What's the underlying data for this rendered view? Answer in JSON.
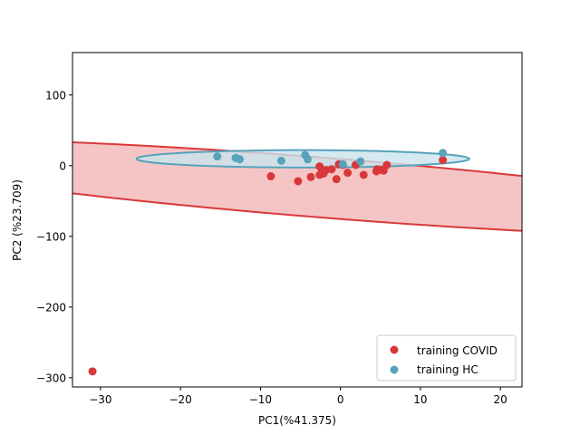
{
  "chart_data": {
    "type": "scatter",
    "xlabel": "PC1(%41.375)",
    "ylabel": "PC2 (%23.709)",
    "xlim": [
      -33.5,
      22.7
    ],
    "ylim": [
      -313,
      160
    ],
    "xticks": [
      -30,
      -20,
      -10,
      0,
      10,
      20
    ],
    "yticks": [
      -300,
      -200,
      -100,
      0,
      100
    ],
    "xtick_labels": [
      "−30",
      "−20",
      "−10",
      "0",
      "10",
      "20"
    ],
    "ytick_labels": [
      "−300",
      "−200",
      "−100",
      "0",
      "100"
    ],
    "legend_position": "lower-right",
    "grid": false,
    "series": [
      {
        "name": "training COVID",
        "color": "#d9383a",
        "points": [
          [
            -31.0,
            -291
          ],
          [
            -8.7,
            -15
          ],
          [
            -5.3,
            -22
          ],
          [
            -3.7,
            -16
          ],
          [
            -2.6,
            -13
          ],
          [
            -2.6,
            -1
          ],
          [
            -2.3,
            -8
          ],
          [
            -2.1,
            -11
          ],
          [
            -1.8,
            -6
          ],
          [
            -1.1,
            -5
          ],
          [
            -0.5,
            -19
          ],
          [
            -0.2,
            2
          ],
          [
            0.3,
            1
          ],
          [
            0.9,
            -10
          ],
          [
            1.9,
            1
          ],
          [
            2.9,
            -13
          ],
          [
            4.5,
            -8
          ],
          [
            4.6,
            -5
          ],
          [
            4.7,
            -6
          ],
          [
            5.2,
            -6
          ],
          [
            5.4,
            -7
          ],
          [
            5.8,
            1
          ],
          [
            12.8,
            8
          ]
        ],
        "ellipse": {
          "cx": -1.7,
          "cy": -31.5,
          "rx": 29.6,
          "ry": 86.5,
          "angle_deg": 40.3,
          "fill": "#f4c2c2",
          "stroke": "#d9383a"
        }
      },
      {
        "name": "training HC",
        "color": "#56a3bb",
        "points": [
          [
            -15.4,
            13
          ],
          [
            -13.1,
            11
          ],
          [
            -12.6,
            9
          ],
          [
            -7.4,
            7
          ],
          [
            -4.4,
            15
          ],
          [
            -4.1,
            9
          ],
          [
            0.3,
            2
          ],
          [
            2.5,
            6
          ],
          [
            12.8,
            18
          ]
        ],
        "ellipse": {
          "cx": -4.7,
          "cy": 9.7,
          "rx": 20.8,
          "ry": 12.3,
          "angle_deg": 0.0,
          "fill": "#c9e4ec",
          "stroke": "#56a3bb"
        }
      }
    ]
  }
}
